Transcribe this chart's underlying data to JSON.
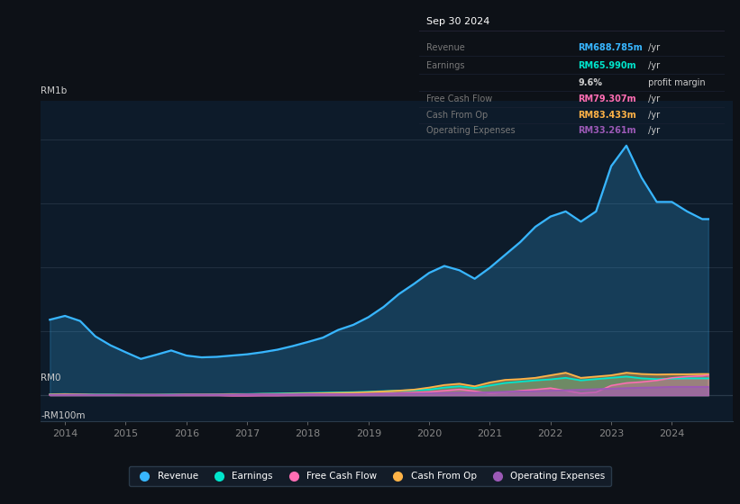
{
  "bg_color": "#0d1117",
  "chart_bg": "#0d1b2a",
  "y_label_top": "RM1b",
  "y_label_zero": "RM0",
  "y_label_neg": "-RM100m",
  "ylim": [
    -100,
    1150
  ],
  "colors": {
    "revenue": "#38b6ff",
    "earnings": "#00e5cc",
    "fcf": "#ff6eb4",
    "cashfromop": "#ffb347",
    "opex": "#9b59b6"
  },
  "legend": [
    {
      "label": "Revenue",
      "color": "#38b6ff"
    },
    {
      "label": "Earnings",
      "color": "#00e5cc"
    },
    {
      "label": "Free Cash Flow",
      "color": "#ff6eb4"
    },
    {
      "label": "Cash From Op",
      "color": "#ffb347"
    },
    {
      "label": "Operating Expenses",
      "color": "#9b59b6"
    }
  ],
  "tooltip_title": "Sep 30 2024",
  "tooltip_rows": [
    {
      "label": "Revenue",
      "value": "RM688.785m",
      "unit": " /yr",
      "color": "#38b6ff",
      "label_color": "#777777"
    },
    {
      "label": "Earnings",
      "value": "RM65.990m",
      "unit": " /yr",
      "color": "#00e5cc",
      "label_color": "#777777"
    },
    {
      "label": "",
      "value": "9.6%",
      "unit": " profit margin",
      "color": "#cccccc",
      "label_color": "#777777"
    },
    {
      "label": "Free Cash Flow",
      "value": "RM79.307m",
      "unit": " /yr",
      "color": "#ff6eb4",
      "label_color": "#777777"
    },
    {
      "label": "Cash From Op",
      "value": "RM83.433m",
      "unit": " /yr",
      "color": "#ffb347",
      "label_color": "#777777"
    },
    {
      "label": "Operating Expenses",
      "value": "RM33.261m",
      "unit": " /yr",
      "color": "#9b59b6",
      "label_color": "#777777"
    }
  ],
  "x_years": [
    2013.75,
    2014.0,
    2014.25,
    2014.5,
    2014.75,
    2015.0,
    2015.25,
    2015.5,
    2015.75,
    2016.0,
    2016.25,
    2016.5,
    2016.75,
    2017.0,
    2017.25,
    2017.5,
    2017.75,
    2018.0,
    2018.25,
    2018.5,
    2018.75,
    2019.0,
    2019.25,
    2019.5,
    2019.75,
    2020.0,
    2020.25,
    2020.5,
    2020.75,
    2021.0,
    2021.25,
    2021.5,
    2021.75,
    2022.0,
    2022.25,
    2022.5,
    2022.75,
    2023.0,
    2023.25,
    2023.5,
    2023.75,
    2024.0,
    2024.25,
    2024.5,
    2024.6
  ],
  "revenue": [
    295,
    310,
    290,
    230,
    195,
    168,
    142,
    158,
    175,
    155,
    148,
    150,
    155,
    160,
    168,
    178,
    192,
    208,
    225,
    255,
    275,
    305,
    345,
    395,
    435,
    478,
    505,
    488,
    455,
    498,
    548,
    598,
    658,
    698,
    718,
    678,
    718,
    895,
    975,
    850,
    755,
    755,
    718,
    688,
    688
  ],
  "earnings": [
    4,
    5,
    4,
    3,
    3,
    2,
    2,
    2,
    3,
    3,
    3,
    4,
    5,
    5,
    6,
    7,
    8,
    9,
    10,
    11,
    12,
    14,
    16,
    18,
    20,
    22,
    30,
    35,
    28,
    38,
    48,
    53,
    58,
    62,
    68,
    58,
    63,
    68,
    73,
    66,
    63,
    65,
    66,
    66,
    66
  ],
  "fcf": [
    1,
    2,
    2,
    1,
    1,
    1,
    0,
    0,
    0,
    0,
    0,
    0,
    -2,
    -2,
    -1,
    -1,
    0,
    1,
    2,
    3,
    4,
    5,
    7,
    9,
    11,
    13,
    18,
    23,
    16,
    8,
    12,
    18,
    22,
    28,
    18,
    8,
    12,
    38,
    48,
    52,
    58,
    68,
    73,
    76,
    79
  ],
  "cashfromop": [
    3,
    4,
    3,
    2,
    2,
    2,
    2,
    2,
    2,
    3,
    3,
    3,
    4,
    4,
    5,
    5,
    6,
    7,
    8,
    9,
    10,
    12,
    15,
    18,
    22,
    30,
    40,
    45,
    35,
    50,
    60,
    63,
    68,
    78,
    88,
    68,
    73,
    78,
    88,
    83,
    81,
    82,
    82,
    83,
    83
  ],
  "opex": [
    2,
    2,
    2,
    2,
    2,
    2,
    2,
    2,
    2,
    3,
    3,
    3,
    3,
    4,
    4,
    4,
    4,
    5,
    5,
    5,
    5,
    6,
    6,
    7,
    7,
    8,
    9,
    10,
    10,
    12,
    14,
    15,
    16,
    18,
    20,
    22,
    24,
    26,
    28,
    30,
    31,
    33,
    33,
    33,
    33
  ]
}
